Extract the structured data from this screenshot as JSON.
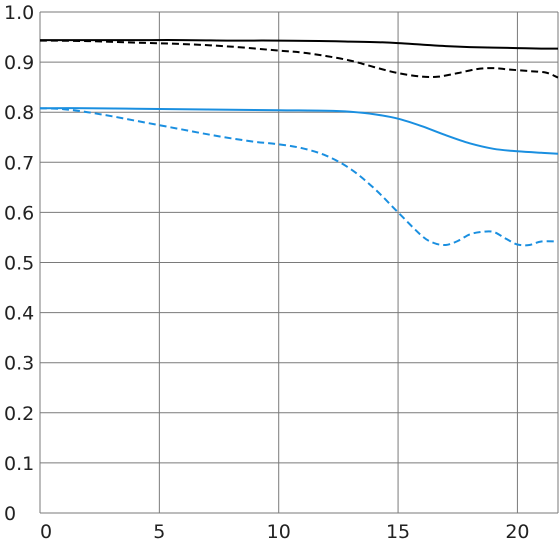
{
  "chart_data": {
    "type": "line",
    "title": "",
    "xlabel": "",
    "ylabel": "",
    "xlim": [
      0,
      21.7
    ],
    "ylim": [
      0,
      1.0
    ],
    "grid": true,
    "x_ticks": [
      0,
      5,
      10,
      15,
      20
    ],
    "x_tick_labels": [
      "0",
      "5",
      "10",
      "15",
      "20"
    ],
    "y_ticks": [
      0,
      0.1,
      0.2,
      0.3,
      0.4,
      0.5,
      0.6,
      0.7,
      0.8,
      0.9,
      1.0
    ],
    "y_tick_labels": [
      "0",
      "0.1",
      "0.2",
      "0.3",
      "0.4",
      "0.5",
      "0.6",
      "0.7",
      "0.8",
      "0.9",
      "1.0"
    ],
    "series": [
      {
        "color": "#000000",
        "dashed": false,
        "x": [
          0,
          2,
          4,
          6,
          8,
          10,
          12,
          13,
          14,
          15,
          16,
          17,
          18,
          19,
          20,
          21,
          21.7
        ],
        "y": [
          0.944,
          0.944,
          0.944,
          0.944,
          0.943,
          0.943,
          0.942,
          0.941,
          0.94,
          0.938,
          0.935,
          0.932,
          0.93,
          0.929,
          0.928,
          0.927,
          0.927
        ]
      },
      {
        "color": "#000000",
        "dashed": true,
        "x": [
          0,
          2,
          4,
          6,
          8,
          10,
          11,
          12,
          13,
          14,
          15,
          16,
          16.7,
          17.5,
          18.3,
          19,
          19.7,
          20.5,
          21.2,
          21.7
        ],
        "y": [
          0.943,
          0.942,
          0.939,
          0.936,
          0.931,
          0.923,
          0.919,
          0.912,
          0.903,
          0.89,
          0.878,
          0.871,
          0.871,
          0.878,
          0.886,
          0.888,
          0.885,
          0.882,
          0.879,
          0.869
        ]
      },
      {
        "color": "#1a8fe0",
        "dashed": false,
        "x": [
          0,
          2,
          4,
          6,
          8,
          10,
          12,
          13,
          14,
          15,
          16,
          17,
          18,
          19,
          20,
          21,
          21.7
        ],
        "y": [
          0.808,
          0.808,
          0.807,
          0.806,
          0.805,
          0.804,
          0.803,
          0.801,
          0.796,
          0.787,
          0.772,
          0.754,
          0.738,
          0.727,
          0.722,
          0.719,
          0.717
        ]
      },
      {
        "color": "#1a8fe0",
        "dashed": true,
        "x": [
          0,
          1,
          2,
          3,
          4,
          5,
          6,
          7,
          8,
          9,
          10,
          11,
          12,
          13,
          14,
          15,
          16,
          16.5,
          17,
          17.5,
          18,
          18.5,
          19,
          19.5,
          20,
          20.5,
          21,
          21.7
        ],
        "y": [
          0.808,
          0.806,
          0.8,
          0.792,
          0.783,
          0.774,
          0.765,
          0.756,
          0.748,
          0.741,
          0.736,
          0.728,
          0.713,
          0.687,
          0.648,
          0.6,
          0.553,
          0.539,
          0.535,
          0.543,
          0.556,
          0.561,
          0.561,
          0.548,
          0.536,
          0.535,
          0.542,
          0.542
        ]
      }
    ]
  }
}
